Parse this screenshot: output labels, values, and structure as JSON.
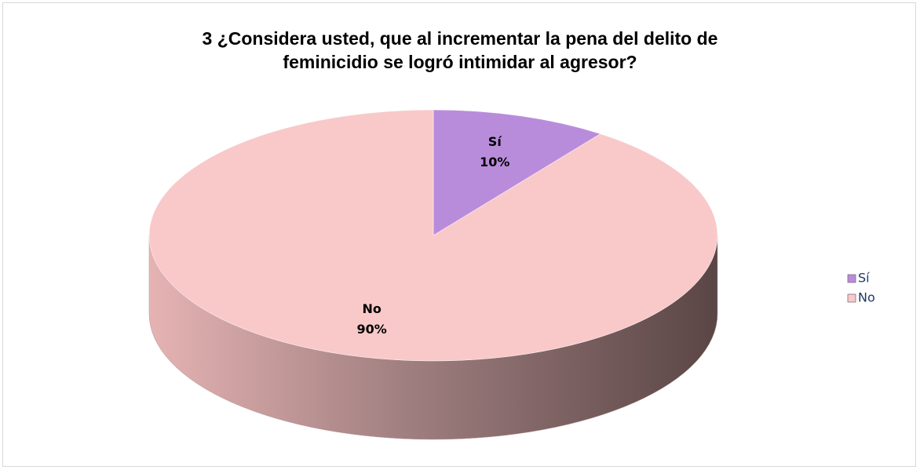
{
  "chart_data": {
    "type": "pie",
    "title": "3 ¿Considera usted, que al incrementar la pena del delito de feminicidio se logró intimidar al agresor?",
    "categories": [
      "Sí",
      "No"
    ],
    "values": [
      10,
      90
    ],
    "value_labels": [
      "10%",
      "90%"
    ],
    "colors": [
      "#b98cdb",
      "#f9c9c9"
    ],
    "legend": "right"
  }
}
